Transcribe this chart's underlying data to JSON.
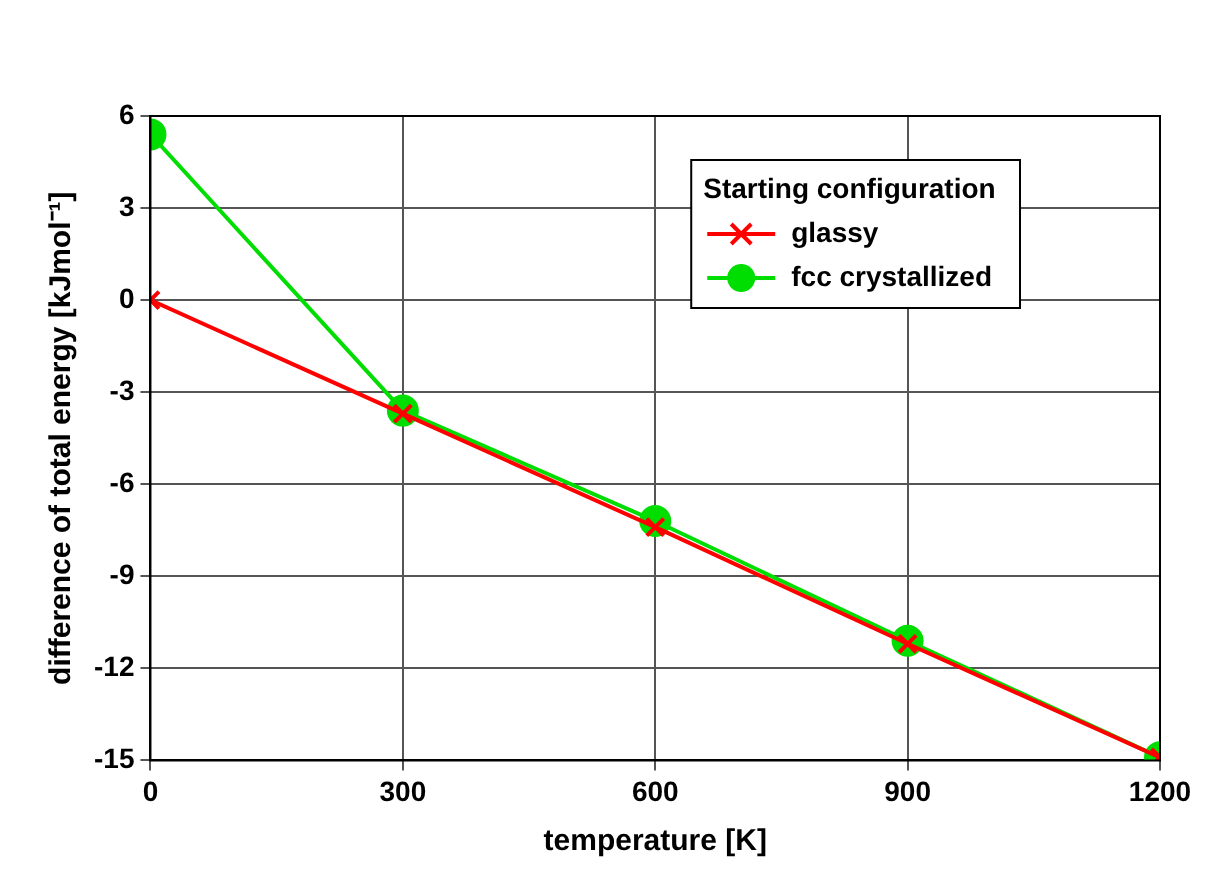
{
  "chart_data": {
    "type": "line",
    "xlabel": "temperature [K]",
    "ylabel": "difference of total energy [kJmol⁻¹]",
    "legend_title": "Starting configuration",
    "x": [
      0,
      300,
      600,
      900,
      1200
    ],
    "series": [
      {
        "name": "glassy",
        "color": "#ff0000",
        "marker": "cross",
        "values": [
          0,
          -3.7,
          -7.4,
          -11.2,
          -14.9
        ]
      },
      {
        "name": "fcc crystallized",
        "color": "#00dd00",
        "marker": "circle",
        "values": [
          5.4,
          -3.6,
          -7.2,
          -11.1,
          -14.9
        ]
      }
    ],
    "xlim": [
      0,
      1200
    ],
    "xticks": [
      0,
      300,
      600,
      900,
      1200
    ],
    "ylim": [
      -15,
      6
    ],
    "yticks": [
      -15,
      -12,
      -9,
      -6,
      -3,
      0,
      3,
      6
    ],
    "grid": true,
    "legend": "top right",
    "line_style": "solid"
  }
}
